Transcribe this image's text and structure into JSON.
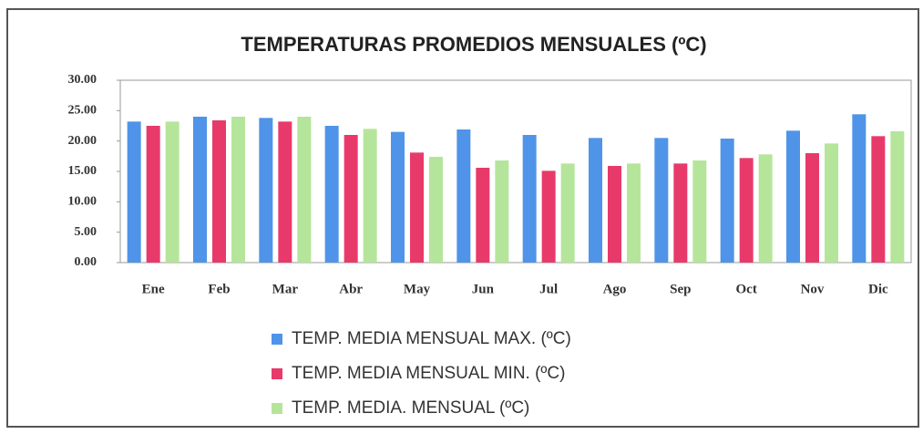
{
  "chart_data": {
    "type": "bar",
    "title": "TEMPERATURAS PROMEDIOS MENSUALES (ºC)",
    "categories": [
      "Ene",
      "Feb",
      "Mar",
      "Abr",
      "May",
      "Jun",
      "Jul",
      "Ago",
      "Sep",
      "Oct",
      "Nov",
      "Dic"
    ],
    "series": [
      {
        "name": "TEMP. MEDIA MENSUAL MAX. (ºC)",
        "color": "#4f94e8",
        "values": [
          23.2,
          24.0,
          23.8,
          22.5,
          21.5,
          21.9,
          21.0,
          20.5,
          20.5,
          20.4,
          21.7,
          24.4
        ]
      },
      {
        "name": "TEMP. MEDIA MENSUAL MIN. (ºC)",
        "color": "#e83a6a",
        "values": [
          22.5,
          23.4,
          23.2,
          21.0,
          18.1,
          15.6,
          15.1,
          15.9,
          16.3,
          17.2,
          18.0,
          20.8
        ]
      },
      {
        "name": "TEMP. MEDIA. MENSUAL (ºC)",
        "color": "#b5e59a",
        "values": [
          23.2,
          24.0,
          24.0,
          22.0,
          17.4,
          16.8,
          16.3,
          16.3,
          16.8,
          17.8,
          19.6,
          21.6
        ]
      }
    ],
    "ylim": [
      0,
      30
    ],
    "yticks": [
      {
        "value": 0,
        "label": "0.00"
      },
      {
        "value": 5,
        "label": "5.00"
      },
      {
        "value": 10,
        "label": "10.00"
      },
      {
        "value": 15,
        "label": "15.00"
      },
      {
        "value": 20,
        "label": "20.00"
      },
      {
        "value": 25,
        "label": "25.00"
      },
      {
        "value": 30,
        "label": "30.00"
      }
    ]
  }
}
